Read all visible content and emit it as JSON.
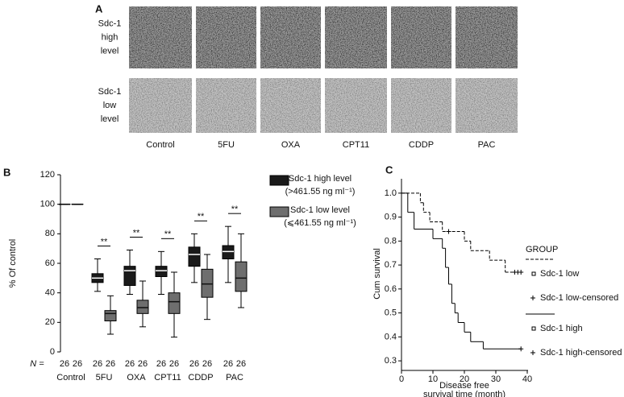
{
  "panel_a": {
    "label": "A",
    "rows": [
      [
        "Sdc-1",
        "high",
        "level"
      ],
      [
        "Sdc-1",
        "low",
        "level"
      ]
    ],
    "columns": [
      "Control",
      "5FU",
      "OXA",
      "CPT11",
      "CDDP",
      "PAC"
    ]
  },
  "chart_data": [
    {
      "type": "box",
      "panel": "B",
      "ylabel": "% Of control",
      "categories": [
        "Control",
        "5FU",
        "OXA",
        "CPT11",
        "CDDP",
        "PAC"
      ],
      "ylim": [
        0,
        120
      ],
      "yticks": [
        0,
        20,
        40,
        60,
        80,
        100,
        120
      ],
      "series": [
        {
          "name": "Sdc-1 high level",
          "threshold": "(>461.55 ng ml⁻¹)",
          "color": "#1a1a1a",
          "median_color": "#ffffff",
          "values": [
            {
              "min": 100,
              "q1": 100,
              "median": 100,
              "q3": 100,
              "max": 100
            },
            {
              "min": 41,
              "q1": 47,
              "median": 50,
              "q3": 53,
              "max": 63
            },
            {
              "min": 39,
              "q1": 45,
              "median": 55,
              "q3": 58,
              "max": 69
            },
            {
              "min": 39,
              "q1": 51,
              "median": 55,
              "q3": 58,
              "max": 68
            },
            {
              "min": 47,
              "q1": 58,
              "median": 66,
              "q3": 71,
              "max": 80
            },
            {
              "min": 47,
              "q1": 63,
              "median": 68,
              "q3": 72,
              "max": 85
            }
          ]
        },
        {
          "name": "Sdc-1 low level",
          "threshold": "(⩽461.55 ng ml⁻¹)",
          "color": "#6e6e6e",
          "median_color": "#111111",
          "values": [
            {
              "min": 100,
              "q1": 100,
              "median": 100,
              "q3": 100,
              "max": 100
            },
            {
              "min": 12,
              "q1": 21,
              "median": 26,
              "q3": 28,
              "max": 38
            },
            {
              "min": 17,
              "q1": 26,
              "median": 30,
              "q3": 35,
              "max": 48
            },
            {
              "min": 10,
              "q1": 26,
              "median": 34,
              "q3": 40,
              "max": 54
            },
            {
              "min": 22,
              "q1": 37,
              "median": 46,
              "q3": 56,
              "max": 66
            },
            {
              "min": 30,
              "q1": 41,
              "median": 50,
              "q3": 61,
              "max": 80
            }
          ]
        }
      ],
      "significance": [
        null,
        "**",
        "**",
        "**",
        "**",
        "**"
      ],
      "n_label": "N =",
      "n": [
        [
          26,
          26
        ],
        [
          26,
          26
        ],
        [
          26,
          26
        ],
        [
          26,
          26
        ],
        [
          26,
          26
        ],
        [
          26,
          26
        ]
      ]
    },
    {
      "type": "survival",
      "panel": "C",
      "xlabel": [
        "Disease free",
        "survival time (month)"
      ],
      "ylabel": "Cum survival",
      "xlim": [
        0,
        40
      ],
      "xticks": [
        0,
        10,
        20,
        30,
        40
      ],
      "ylim": [
        0.26,
        1.06
      ],
      "yticks": [
        0.3,
        0.4,
        0.5,
        0.6,
        0.7,
        0.8,
        0.9,
        {
          "value": 1,
          "label": "1.0"
        }
      ],
      "legend_title": "GROUP",
      "series": [
        {
          "name": "Sdc-1 low",
          "dashed": true,
          "color": "#000000",
          "x": [
            0,
            6,
            7,
            9,
            13,
            20,
            22,
            28,
            33,
            38
          ],
          "values": [
            1,
            0.96,
            0.92,
            0.88,
            0.84,
            0.8,
            0.76,
            0.72,
            0.67,
            0.67
          ],
          "censored": {
            "name": "Sdc-1 low-censored",
            "x": [
              15,
              36,
              37,
              38
            ],
            "values": [
              0.84,
              0.67,
              0.67,
              0.67
            ]
          }
        },
        {
          "name": "Sdc-1 high",
          "dashed": false,
          "color": "#000000",
          "x": [
            0,
            2,
            4,
            10,
            13,
            14,
            15,
            16,
            17,
            18,
            20,
            22,
            26,
            38
          ],
          "values": [
            1,
            0.92,
            0.85,
            0.81,
            0.77,
            0.69,
            0.62,
            0.54,
            0.5,
            0.46,
            0.42,
            0.38,
            0.35,
            0.35
          ],
          "censored": {
            "name": "Sdc-1 high-censored",
            "x": [
              38
            ],
            "values": [
              0.35
            ]
          }
        }
      ]
    }
  ]
}
